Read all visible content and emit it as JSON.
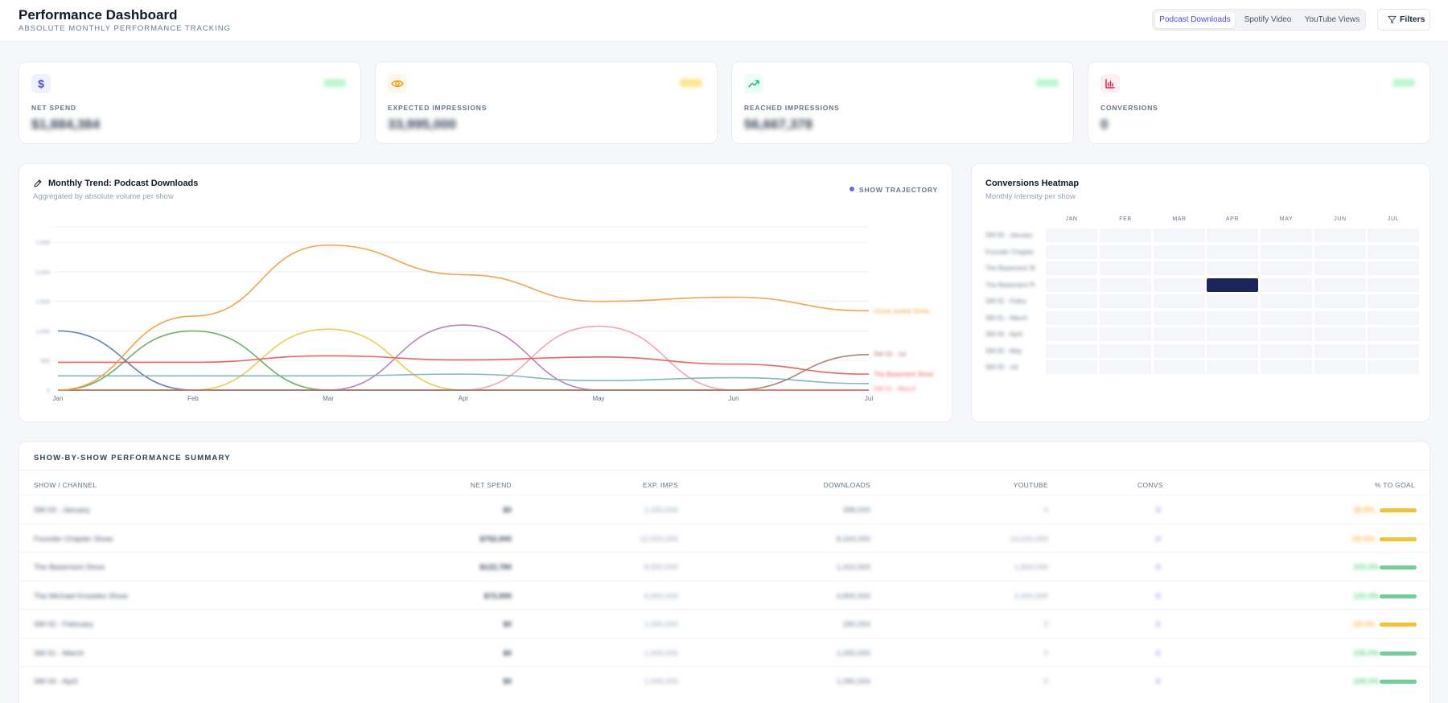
{
  "header": {
    "title": "Performance Dashboard",
    "subtitle": "ABSOLUTE MONTHLY PERFORMANCE TRACKING",
    "tabs": [
      {
        "label": "Podcast Downloads",
        "active": true
      },
      {
        "label": "Spotify Video",
        "active": false
      },
      {
        "label": "YouTube Views",
        "active": false
      }
    ],
    "filters_label": "Filters"
  },
  "kpis": [
    {
      "label": "NET SPEND",
      "value": "$1,884,384",
      "icon": "dollar-icon",
      "color": "#4f46e5",
      "badge_color": "#bbf7d0"
    },
    {
      "label": "EXPECTED IMPRESSIONS",
      "value": "33,995,000",
      "icon": "eye-icon",
      "color": "#f59e0b",
      "badge_color": "#fde68a"
    },
    {
      "label": "REACHED IMPRESSIONS",
      "value": "56,667,378",
      "icon": "trend-up-icon",
      "color": "#10b981",
      "badge_color": "#bbf7d0"
    },
    {
      "label": "CONVERSIONS",
      "value": "0",
      "icon": "bar-chart-icon",
      "color": "#e11d48",
      "badge_color": "#bbf7d0"
    }
  ],
  "trend": {
    "title": "Monthly Trend: Podcast Downloads",
    "subtitle": "Aggregated by absolute volume per show",
    "toggle_label": "SHOW TRAJECTORY"
  },
  "chart_data": {
    "type": "line",
    "categories": [
      "Jan",
      "Feb",
      "Mar",
      "Apr",
      "May",
      "Jun",
      "Jul"
    ],
    "y_ticks": [
      "0",
      "500",
      "1,000",
      "1,500",
      "2,000",
      "2,500"
    ],
    "ylim": [
      0,
      2800
    ],
    "series": [
      {
        "name": "Crime Junkie Show",
        "color": "#f59e42",
        "values": [
          0,
          1250,
          2450,
          1950,
          1500,
          1570,
          1340
        ],
        "label_shown": true
      },
      {
        "name": "SM 03 - Jul",
        "color": "#a67c6b",
        "values": [
          0,
          0,
          0,
          0,
          0,
          0,
          600
        ],
        "label_shown": true
      },
      {
        "name": "The Basement Show",
        "color": "#ef5a5a",
        "values": [
          470,
          470,
          580,
          510,
          560,
          440,
          270
        ],
        "label_shown": true
      },
      {
        "name": "SM 01 - March",
        "color": "#f77b7b",
        "values": [
          0,
          0,
          0,
          0,
          0,
          0,
          0
        ],
        "label_shown": true
      },
      {
        "name": "",
        "color": "#7ab5b8",
        "values": [
          240,
          240,
          240,
          270,
          160,
          210,
          110
        ],
        "label_shown": false
      },
      {
        "name": "",
        "color": "#5a7bb5",
        "values": [
          1000,
          0,
          0,
          0,
          0,
          0,
          0
        ],
        "label_shown": false
      },
      {
        "name": "",
        "color": "#67ad5a",
        "values": [
          0,
          1000,
          0,
          0,
          0,
          0,
          0
        ],
        "label_shown": false
      },
      {
        "name": "",
        "color": "#eec94a",
        "values": [
          0,
          0,
          1030,
          0,
          0,
          0,
          0
        ],
        "label_shown": false
      },
      {
        "name": "",
        "color": "#b57cb7",
        "values": [
          0,
          0,
          0,
          1100,
          0,
          0,
          0
        ],
        "label_shown": false
      },
      {
        "name": "",
        "color": "#f5a0ab",
        "values": [
          0,
          0,
          0,
          0,
          1080,
          0,
          0
        ],
        "label_shown": false
      }
    ]
  },
  "heatmap": {
    "title": "Conversions Heatmap",
    "subtitle": "Monthly intensity per show",
    "months": [
      "JAN",
      "FEB",
      "MAR",
      "APR",
      "MAY",
      "JUN",
      "JUL"
    ],
    "rows": [
      "SM 03 - January",
      "Founder Chapter Show",
      "The Basement Show",
      "The Basement Pod",
      "SM 02 - Febru",
      "SM 01 - March",
      "SM 04 - April",
      "SM 05 - May",
      "SM 03 - Jul"
    ],
    "empty_color": "#f5f6f9",
    "highlight_color": "#1b2559",
    "highlight": {
      "row": 3,
      "col": 3
    }
  },
  "table": {
    "title": "SHOW-BY-SHOW PERFORMANCE SUMMARY",
    "columns": [
      "SHOW / CHANNEL",
      "NET SPEND",
      "EXP. IMPS",
      "DOWNLOADS",
      "YOUTUBE",
      "CONVS",
      "% TO GOAL"
    ],
    "rows": [
      {
        "show": "SM 03 - January",
        "spend": "$0",
        "exp": "1,000,000",
        "downloads": "388,000",
        "youtube": "0",
        "convs": "0",
        "goal": "38.8%",
        "goal_pct": 100,
        "bar_color": "#f1c232",
        "goal_color": "#f59e0b"
      },
      {
        "show": "Founder Chapter Show",
        "spend": "$752,000",
        "exp": "12,000,000",
        "downloads": "8,344,000",
        "youtube": "14,020,000",
        "convs": "0",
        "goal": "69.5%",
        "goal_pct": 100,
        "bar_color": "#f1c232",
        "goal_color": "#f59e0b"
      },
      {
        "show": "The Basement Show",
        "spend": "$122,780",
        "exp": "8,500,000",
        "downloads": "1,410,000",
        "youtube": "1,820,000",
        "convs": "0",
        "goal": "100.0%",
        "goal_pct": 100,
        "bar_color": "#6fcf97",
        "goal_color": "#22c55e"
      },
      {
        "show": "The Michael Knowles Show",
        "spend": "$72,000",
        "exp": "6,000,000",
        "downloads": "4,800,000",
        "youtube": "2,400,000",
        "convs": "0",
        "goal": "120.0%",
        "goal_pct": 100,
        "bar_color": "#6fcf97",
        "goal_color": "#22c55e"
      },
      {
        "show": "SM 02 - February",
        "spend": "$0",
        "exp": "1,000,000",
        "downloads": "280,000",
        "youtube": "0",
        "convs": "0",
        "goal": "28.0%",
        "goal_pct": 100,
        "bar_color": "#f1c232",
        "goal_color": "#f59e0b"
      },
      {
        "show": "SM 01 - March",
        "spend": "$0",
        "exp": "1,000,000",
        "downloads": "1,050,000",
        "youtube": "0",
        "convs": "0",
        "goal": "105.0%",
        "goal_pct": 100,
        "bar_color": "#6fcf97",
        "goal_color": "#22c55e"
      },
      {
        "show": "SM 04 - April",
        "spend": "$0",
        "exp": "1,000,000",
        "downloads": "1,080,000",
        "youtube": "0",
        "convs": "0",
        "goal": "108.0%",
        "goal_pct": 100,
        "bar_color": "#6fcf97",
        "goal_color": "#22c55e"
      }
    ]
  }
}
